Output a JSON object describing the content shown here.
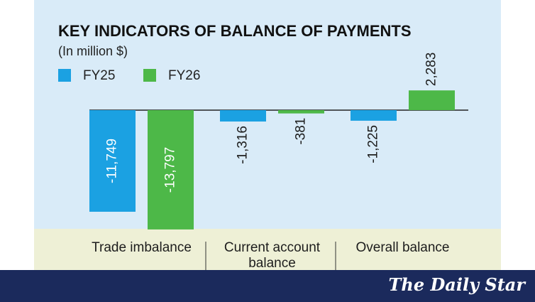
{
  "chart_data": {
    "type": "bar",
    "title": "KEY INDICATORS OF BALANCE OF PAYMENTS",
    "subtitle": "(In million $)",
    "categories": [
      "Trade imbalance",
      "Current account balance",
      "Overall balance"
    ],
    "series": [
      {
        "name": "FY25",
        "color": "#1ba1e2",
        "values": [
          -11749,
          -1316,
          -1225
        ],
        "value_labels": [
          "-11,749",
          "-1,316",
          "-1,225"
        ]
      },
      {
        "name": "FY26",
        "color": "#4db848",
        "values": [
          -13797,
          -381,
          2283
        ],
        "value_labels": [
          "-13,797",
          "-381",
          "2,283"
        ]
      }
    ]
  },
  "footer": {
    "logo": "The Daily Star"
  }
}
